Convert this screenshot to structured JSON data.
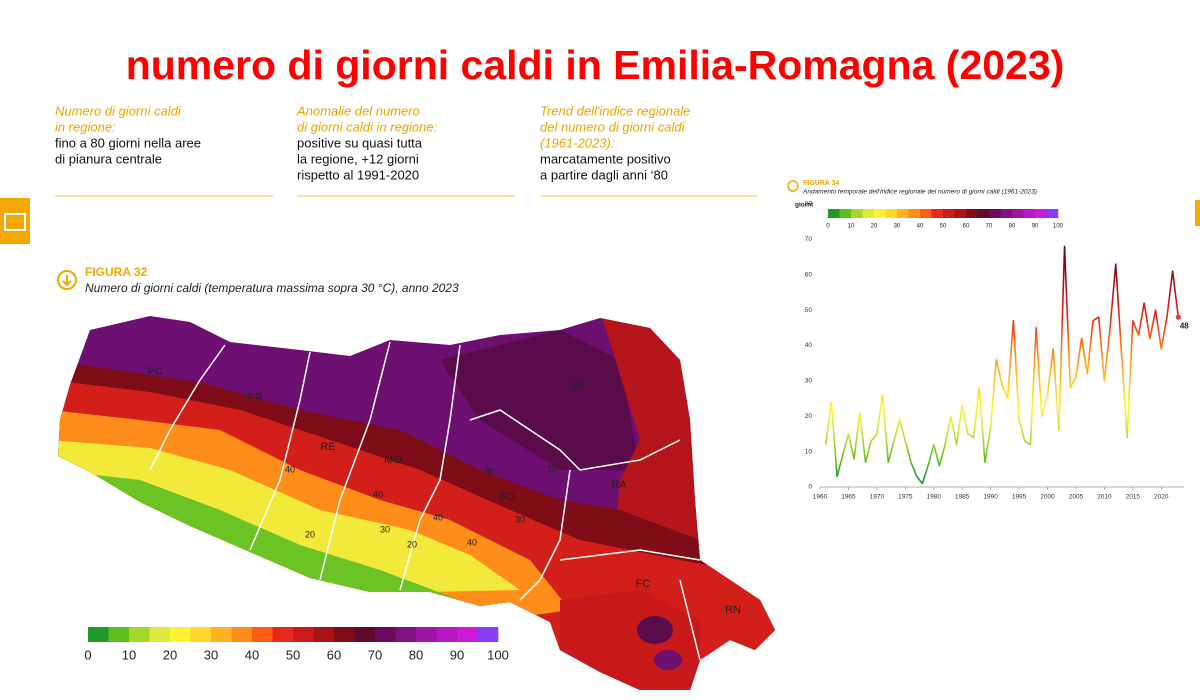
{
  "title": "numero di giorni caldi in Emilia-Romagna (2023)",
  "notes": [
    {
      "heading": [
        "Numero di giorni caldi",
        "in regione:"
      ],
      "body": [
        "fino a 80 giorni nella aree",
        "di pianura centrale"
      ]
    },
    {
      "heading": [
        "Anomalie del numero",
        "di giorni caldi in regione:"
      ],
      "body": [
        "positive su quasi tutta",
        "la regione, +12 giorni",
        "rispetto al 1991-2020"
      ]
    },
    {
      "heading": [
        "Trend dell'indice regionale",
        "del numero di giorni caldi",
        "(1961-2023):"
      ],
      "body": [
        "marcatamente positivo",
        "a partire dagli anni ‘80"
      ]
    }
  ],
  "map": {
    "figure_label": "FIGURA 32",
    "caption": "Numero di giorni caldi (temperatura massima sopra 30 °C), anno 2023",
    "provinces": [
      "PC",
      "PR",
      "RE",
      "MO",
      "BO",
      "FE",
      "RA",
      "FC",
      "RN"
    ],
    "contour_labels": [
      40,
      40,
      40,
      30,
      20,
      20,
      40,
      80,
      70,
      30
    ],
    "colorbar": {
      "ticks": [
        0,
        10,
        20,
        30,
        40,
        50,
        60,
        70,
        80,
        90,
        100
      ],
      "colors": [
        "#1f9a2b",
        "#5cbf1f",
        "#a5d62c",
        "#dcec3b",
        "#fff331",
        "#ffd62a",
        "#ffb321",
        "#ff8d1a",
        "#ff5c15",
        "#e8291a",
        "#cc1b1a",
        "#a81318",
        "#800d18",
        "#5d0a2c",
        "#6c0b5c",
        "#7f1182",
        "#9b15a6",
        "#b619c1",
        "#cf1ad8",
        "#8a3cf5"
      ]
    }
  },
  "chart_data": {
    "type": "line",
    "figure_label": "FIGURA 34",
    "title": "Andamento temporale dell'indice regionale del numero di giorni caldi (1961-2023)",
    "y_label": "giorni",
    "x": [
      1961,
      1962,
      1963,
      1964,
      1965,
      1966,
      1967,
      1968,
      1969,
      1970,
      1971,
      1972,
      1973,
      1974,
      1975,
      1976,
      1977,
      1978,
      1979,
      1980,
      1981,
      1982,
      1983,
      1984,
      1985,
      1986,
      1987,
      1988,
      1989,
      1990,
      1991,
      1992,
      1993,
      1994,
      1995,
      1996,
      1997,
      1998,
      1999,
      2000,
      2001,
      2002,
      2003,
      2004,
      2005,
      2006,
      2007,
      2008,
      2009,
      2010,
      2011,
      2012,
      2013,
      2014,
      2015,
      2016,
      2017,
      2018,
      2019,
      2020,
      2021,
      2022,
      2023
    ],
    "values": [
      12,
      24,
      3,
      9,
      15,
      8,
      21,
      7,
      13,
      15,
      26,
      7,
      13,
      19,
      13,
      7,
      3,
      1,
      6,
      12,
      6,
      12,
      20,
      12,
      23,
      15,
      14,
      28,
      7,
      17,
      36,
      29,
      25,
      47,
      19,
      13,
      12,
      45,
      20,
      26,
      39,
      16,
      68,
      28,
      31,
      42,
      32,
      47,
      48,
      30,
      45,
      63,
      38,
      14,
      47,
      43,
      52,
      42,
      50,
      39,
      48,
      61,
      48
    ],
    "xlim": [
      1960,
      2024
    ],
    "ylim": [
      0,
      80
    ],
    "xticks": [
      1960,
      1965,
      1970,
      1975,
      1980,
      1985,
      1990,
      1995,
      2000,
      2005,
      2010,
      2015,
      2020
    ],
    "yticks": [
      0,
      10,
      20,
      30,
      40,
      50,
      60,
      70,
      80
    ],
    "colorbar": {
      "ticks": [
        0,
        10,
        20,
        30,
        40,
        50,
        60,
        70,
        80,
        90,
        100
      ],
      "colors": [
        "#1f9a2b",
        "#5cbf1f",
        "#a5d62c",
        "#dcec3b",
        "#fff331",
        "#ffd62a",
        "#ffb321",
        "#ff8d1a",
        "#ff5c15",
        "#e8291a",
        "#cc1b1a",
        "#a81318",
        "#800d18",
        "#5d0a2c",
        "#6c0b5c",
        "#7f1182",
        "#9b15a6",
        "#b619c1",
        "#cf1ad8",
        "#8a3cf5"
      ]
    }
  }
}
